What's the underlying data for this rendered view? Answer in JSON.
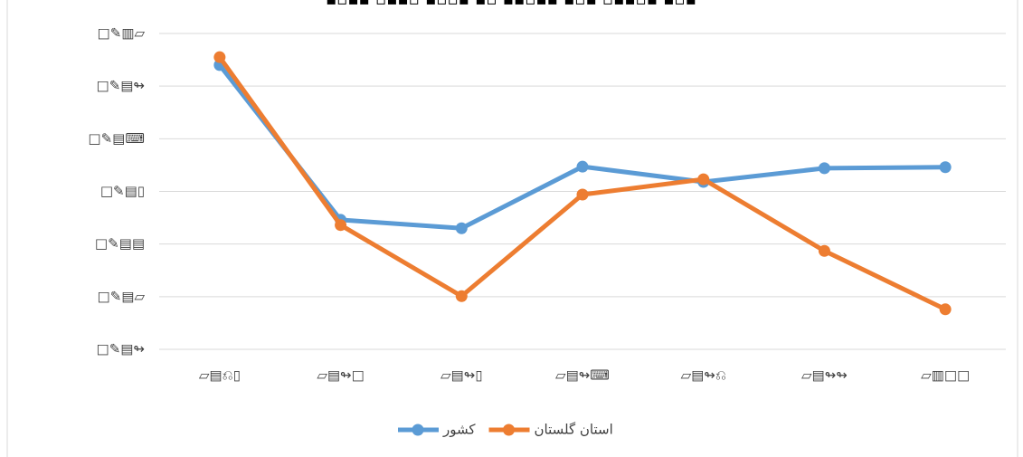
{
  "chart_data": {
    "type": "line",
    "title": "▪▫▪▪ ▫▪▪▫ ▪▫▫▪ ▪▫ ▪▪▫▪▪ ▪▫▪ ▫▪▪▫▪ ▪▫▪",
    "categories": [
      "▱▤⎌▯",
      "▱▤↬□",
      "▱▤↬▯",
      "▱▤↬⌨",
      "▱▤↬⎌",
      "▱▤↬↬",
      "▱▥□□"
    ],
    "series": [
      {
        "name": "کشور",
        "color": "#5b9bd5",
        "values": [
          5.4,
          2.46,
          2.3,
          3.47,
          3.18,
          3.44,
          3.46
        ]
      },
      {
        "name": "استان گلستان",
        "color": "#ed7d31",
        "values": [
          5.55,
          2.36,
          1.01,
          2.94,
          3.23,
          1.87,
          0.76
        ]
      }
    ],
    "ylim": [
      0,
      6
    ],
    "yticks": [
      {
        "value": 0,
        "label": "□✎▤↬"
      },
      {
        "value": 1,
        "label": "□✎▤▱"
      },
      {
        "value": 2,
        "label": "□✎▤▤"
      },
      {
        "value": 3,
        "label": "□✎▤▯"
      },
      {
        "value": 4,
        "label": "□✎▤⌨"
      },
      {
        "value": 5,
        "label": "□✎▤↬"
      },
      {
        "value": 6,
        "label": "□✎▥▱"
      }
    ],
    "grid": true,
    "legend": "bottom"
  }
}
